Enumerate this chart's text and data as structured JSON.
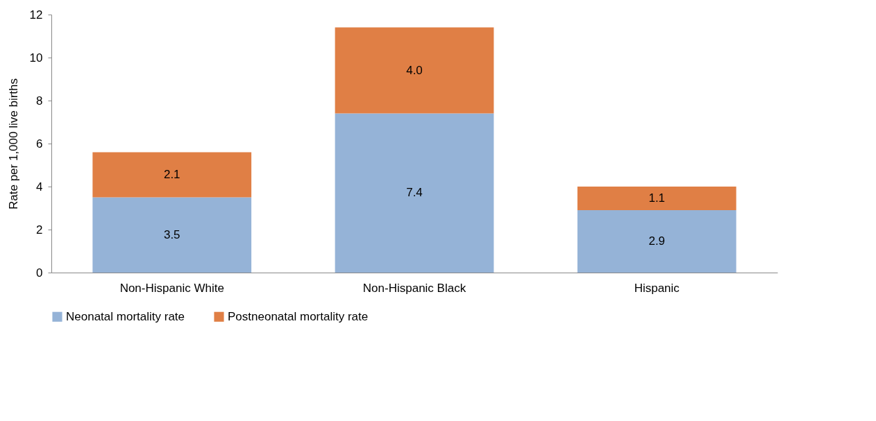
{
  "chart_data": {
    "type": "bar",
    "stacked": true,
    "ylabel": "Rate per 1,000 live births",
    "categories": [
      "Non-Hispanic White",
      "Non-Hispanic Black",
      "Hispanic"
    ],
    "series": [
      {
        "name": "Neonatal mortality rate",
        "color": "#95b3d7",
        "values": [
          3.5,
          7.4,
          2.9
        ]
      },
      {
        "name": "Postneonatal mortality rate",
        "color": "#e07f45",
        "values": [
          2.1,
          4.0,
          1.1
        ],
        "value_labels": [
          "2.1",
          "4.0",
          "1.1"
        ]
      }
    ],
    "ylim": [
      0,
      12
    ],
    "yticks": [
      0,
      2,
      4,
      6,
      8,
      10,
      12
    ],
    "grid": false,
    "legend": "bottom",
    "data_labels": true
  }
}
